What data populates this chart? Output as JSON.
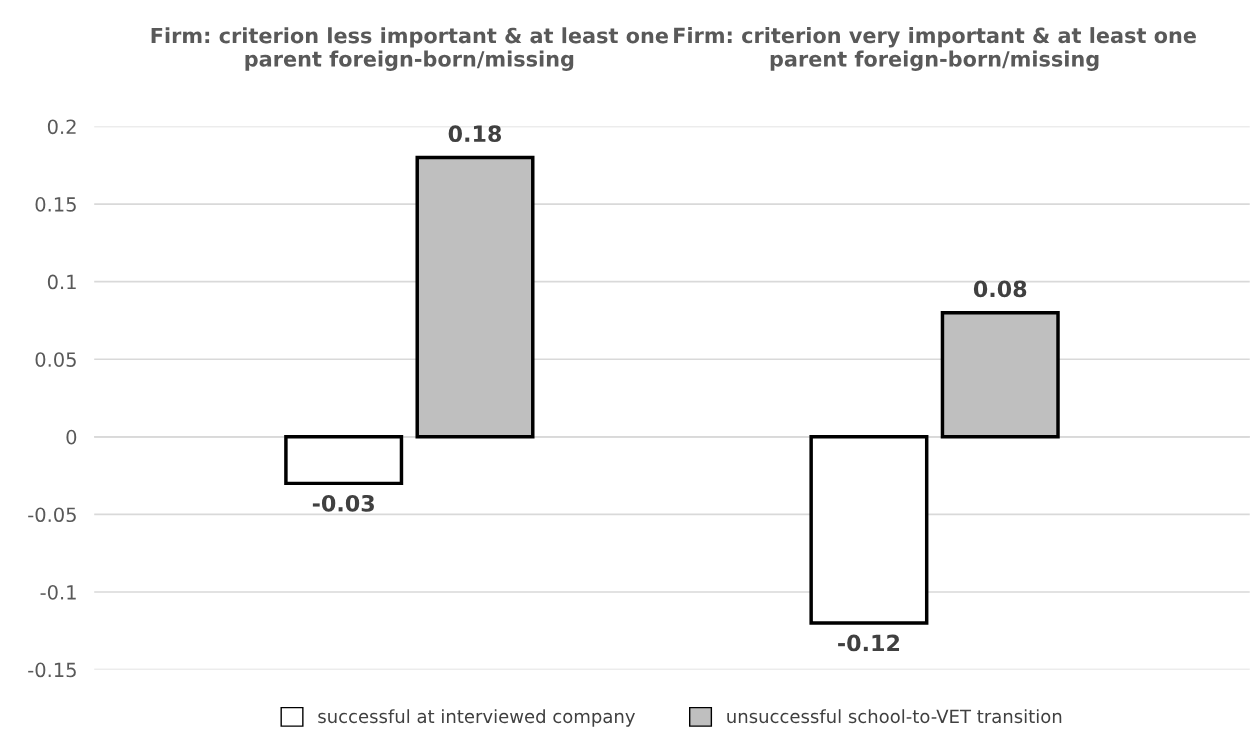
{
  "chart_data": {
    "type": "bar",
    "categories": [
      "Firm: criterion less important & at least one\nparent foreign-born/missing",
      "Firm: criterion very important & at least one\nparent foreign-born/missing"
    ],
    "series": [
      {
        "name": "successful at interviewed company",
        "color": "#ffffff",
        "values": [
          -0.03,
          -0.12
        ]
      },
      {
        "name": "unsuccessful school-to-VET transition",
        "color": "#bfbfbf",
        "values": [
          0.18,
          0.08
        ]
      }
    ],
    "ylim": [
      -0.15,
      0.2
    ],
    "yticks": [
      -0.15,
      -0.1,
      -0.05,
      0,
      0.05,
      0.1,
      0.15,
      0.2
    ],
    "grid": "y",
    "legend": "bottom",
    "data_labels": true
  }
}
